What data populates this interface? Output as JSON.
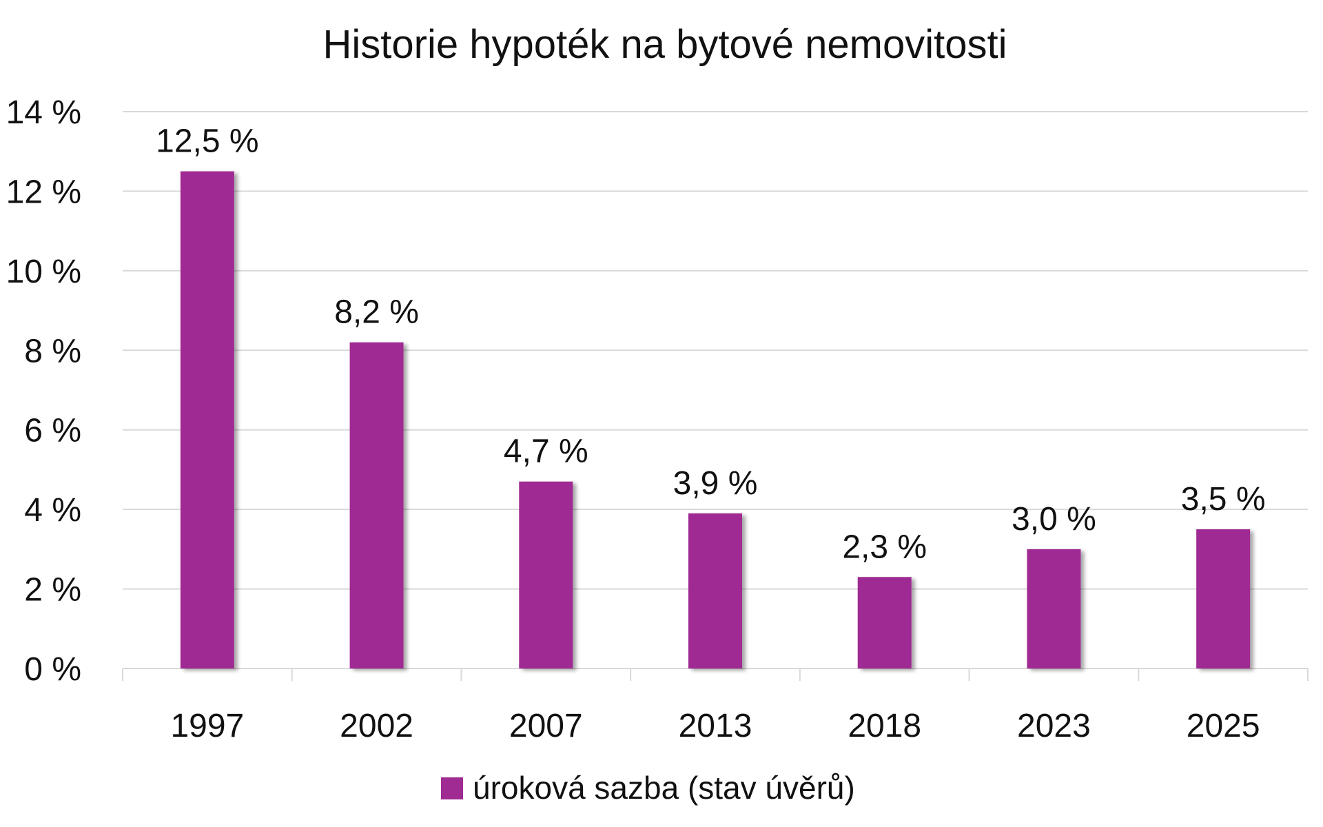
{
  "chart_data": {
    "type": "bar",
    "title": "Historie hypoték na bytové nemovitosti",
    "xlabel": "",
    "ylabel": "",
    "categories": [
      "1997",
      "2002",
      "2007",
      "2013",
      "2018",
      "2023",
      "2025"
    ],
    "series": [
      {
        "name": "úroková sazba (stav úvěrů)",
        "values": [
          12.5,
          8.2,
          4.7,
          3.9,
          2.3,
          3.0,
          3.5
        ],
        "labels": [
          "12,5 %",
          "8,2 %",
          "4,7 %",
          "3,9 %",
          "2,3 %",
          "3,0 %",
          "3,5 %"
        ],
        "color": "#A02B93"
      }
    ],
    "ylim": [
      0,
      14
    ],
    "y_ticks": [
      0,
      2,
      4,
      6,
      8,
      10,
      12,
      14
    ],
    "y_tick_labels": [
      "0 %",
      "2 %",
      "4 %",
      "6 %",
      "8 %",
      "10 %",
      "12 %",
      "14 %"
    ],
    "grid": true,
    "gridline_color": "#D9D9D9",
    "legend_position": "bottom"
  }
}
